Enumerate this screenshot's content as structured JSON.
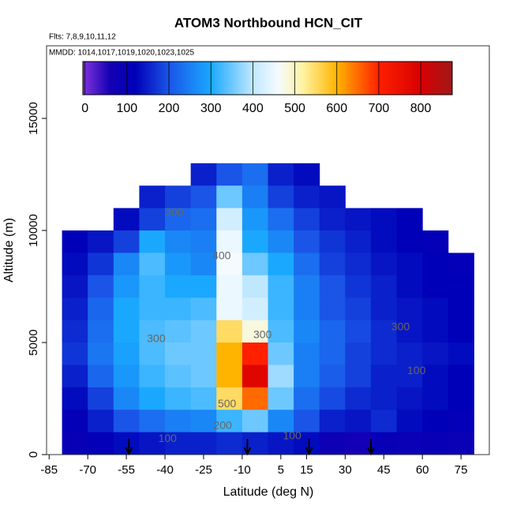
{
  "chart_data": {
    "type": "heatmap",
    "title": "ATOM3 Northbound HCN_CIT",
    "subtitle": "Flts: 7,8,9,10,11,12",
    "subtitle2": "MMDD: 1014,1017,1019,1020,1023,1025",
    "x_label": "Latitude (deg N)",
    "y_label": "Altitude (m)",
    "xlim": [
      -86,
      86
    ],
    "ylim": [
      0,
      18240
    ],
    "xticks": [
      -85,
      -70,
      -55,
      -40,
      -25,
      -10,
      5,
      15,
      30,
      45,
      60,
      75
    ],
    "yticks": [
      0,
      5000,
      10000,
      15000
    ],
    "x": [
      -75,
      -65,
      -55,
      -45,
      -35,
      -25,
      -15,
      -5,
      5,
      15,
      25,
      35,
      45,
      55,
      65,
      75
    ],
    "y": [
      12500,
      11500,
      10500,
      9500,
      8500,
      7500,
      6500,
      5500,
      4500,
      3500,
      2500,
      1500,
      500
    ],
    "values": [
      [
        null,
        null,
        null,
        null,
        null,
        150,
        200,
        230,
        150,
        130,
        null,
        null,
        null,
        null,
        null,
        null
      ],
      [
        null,
        null,
        null,
        150,
        180,
        200,
        350,
        250,
        180,
        150,
        140,
        null,
        null,
        null,
        null,
        null
      ],
      [
        null,
        null,
        130,
        180,
        220,
        230,
        420,
        280,
        230,
        180,
        150,
        140,
        130,
        120,
        null,
        null
      ],
      [
        120,
        140,
        180,
        300,
        260,
        250,
        450,
        300,
        260,
        200,
        170,
        150,
        130,
        120,
        110,
        null
      ],
      [
        130,
        170,
        260,
        330,
        280,
        260,
        460,
        350,
        300,
        230,
        180,
        160,
        140,
        130,
        120,
        110
      ],
      [
        140,
        200,
        280,
        320,
        300,
        300,
        450,
        400,
        320,
        250,
        200,
        170,
        150,
        130,
        120,
        120
      ],
      [
        150,
        220,
        300,
        320,
        320,
        330,
        450,
        420,
        320,
        250,
        200,
        180,
        150,
        140,
        130,
        120
      ],
      [
        160,
        230,
        300,
        330,
        340,
        350,
        550,
        480,
        330,
        260,
        220,
        190,
        160,
        140,
        130,
        120
      ],
      [
        170,
        240,
        290,
        330,
        350,
        350,
        600,
        700,
        350,
        250,
        220,
        180,
        160,
        150,
        140,
        130
      ],
      [
        150,
        220,
        280,
        320,
        340,
        350,
        600,
        780,
        380,
        250,
        210,
        180,
        150,
        150,
        130,
        120
      ],
      [
        130,
        180,
        260,
        300,
        320,
        330,
        550,
        650,
        350,
        230,
        190,
        160,
        150,
        140,
        130,
        120
      ],
      [
        110,
        150,
        200,
        230,
        250,
        260,
        320,
        350,
        260,
        200,
        150,
        140,
        160,
        130,
        120,
        110
      ],
      [
        100,
        110,
        130,
        140,
        150,
        150,
        160,
        150,
        140,
        130,
        80,
        60,
        100,
        90,
        100,
        90
      ]
    ],
    "colorbar_lim": [
      -5,
      875
    ],
    "colorbar_ticks": [
      0,
      100,
      200,
      300,
      400,
      500,
      600,
      700,
      800
    ],
    "colormap": [
      {
        "value": 0,
        "color": "#7a30d8"
      },
      {
        "value": 60,
        "color": "#1400b4"
      },
      {
        "value": 120,
        "color": "#0000b8"
      },
      {
        "value": 200,
        "color": "#1a55e8"
      },
      {
        "value": 300,
        "color": "#1aa8ff"
      },
      {
        "value": 400,
        "color": "#bfe8ff"
      },
      {
        "value": 460,
        "color": "#f4fbff"
      },
      {
        "value": 520,
        "color": "#fff2a0"
      },
      {
        "value": 600,
        "color": "#ffb400"
      },
      {
        "value": 700,
        "color": "#ff2000"
      },
      {
        "value": 800,
        "color": "#d80000"
      },
      {
        "value": 875,
        "color": "#a01818"
      }
    ],
    "contour_labels": [
      {
        "value": 300,
        "x": -36.4,
        "y": 10775
      },
      {
        "value": 400,
        "x": -18,
        "y": 8840
      },
      {
        "value": 300,
        "x": -43.4,
        "y": 5140
      },
      {
        "value": 300,
        "x": -2.1,
        "y": 5320
      },
      {
        "value": 300,
        "x": 51.5,
        "y": 5670
      },
      {
        "value": 100,
        "x": 57.7,
        "y": 3730
      },
      {
        "value": 500,
        "x": -15.9,
        "y": 2250
      },
      {
        "value": 200,
        "x": -17.6,
        "y": 1270
      },
      {
        "value": 100,
        "x": -39,
        "y": 700
      },
      {
        "value": 100,
        "x": 9.4,
        "y": 810
      }
    ],
    "markers_x": [
      -54,
      -8,
      16,
      40
    ]
  }
}
